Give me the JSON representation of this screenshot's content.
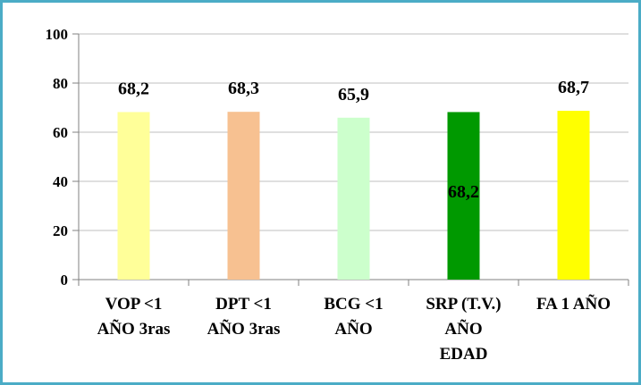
{
  "chart_data": {
    "type": "bar",
    "categories": [
      [
        "VOP <1",
        "AÑO 3ras"
      ],
      [
        "DPT <1",
        "AÑO 3ras"
      ],
      [
        "BCG <1",
        "AÑO"
      ],
      [
        "SRP (T.V.)",
        "AÑO",
        "EDAD"
      ],
      [
        "FA 1 AÑO"
      ]
    ],
    "values": [
      68.2,
      68.3,
      65.9,
      68.2,
      68.7
    ],
    "data_labels": [
      "68,2",
      "68,3",
      "65,9",
      "68,2",
      "68,7"
    ],
    "data_label_position": [
      "top",
      "top",
      "top",
      "inside",
      "top"
    ],
    "bar_colors": [
      "#ffff99",
      "#f7c191",
      "#ccffcc",
      "#009900",
      "#ffff00"
    ],
    "ylim": [
      0,
      100
    ],
    "yticks": [
      0,
      20,
      40,
      60,
      80,
      100
    ],
    "grid": true,
    "legend": "none",
    "title": "",
    "xlabel": "",
    "ylabel": ""
  },
  "colors": {
    "frame_border": "#4bacc6",
    "gridline": "#bfbfbf",
    "axis": "#808080"
  }
}
